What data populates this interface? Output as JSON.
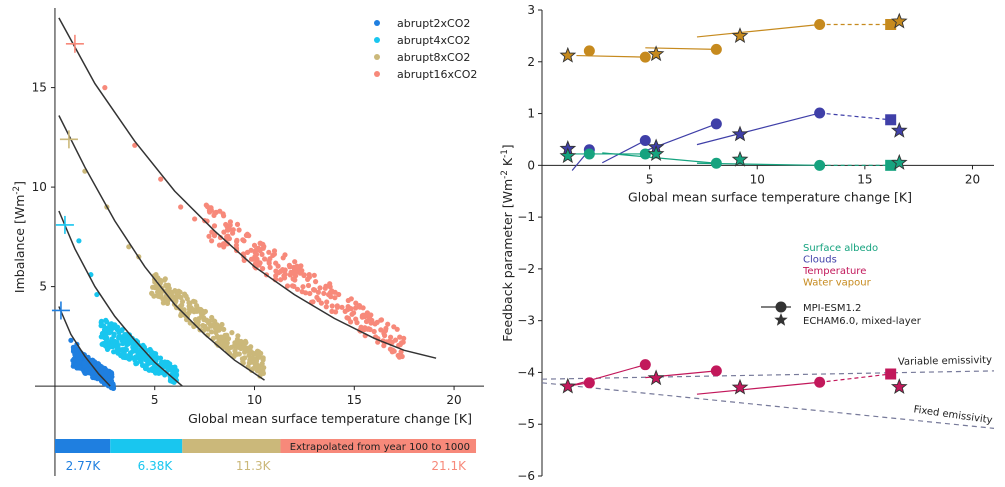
{
  "chart_data": [
    {
      "type": "scatter",
      "xlabel": "Global mean surface temperature change [K]",
      "ylabel": "Imbalance [Wm$^{-2}$]",
      "xlim": [
        -1,
        21.5
      ],
      "ylim": [
        -1,
        19
      ],
      "xticks": [
        "5",
        "10",
        "15",
        "20"
      ],
      "yticks": [
        "5",
        "10",
        "15"
      ],
      "legend_placement": "top-right",
      "series": [
        {
          "name": "abrupt2xCO2",
          "color": "#1f7fe0",
          "cloud": {
            "x0": 0.9,
            "x1": 2.95,
            "yhi0": 2.0,
            "ylo0": 1.0,
            "yhi1": 0.6,
            "ylo1": -0.2
          },
          "initial_point": [
            0.3,
            3.8
          ],
          "fit_line": {
            "x": [
              0.2,
              0.8,
              1.5,
              2.2,
              2.77
            ],
            "y": [
              4.0,
              2.6,
              1.5,
              0.6,
              0.0
            ]
          }
        },
        {
          "name": "abrupt4xCO2",
          "color": "#19c6ef",
          "cloud": {
            "x0": 2.3,
            "x1": 6.1,
            "yhi0": 3.6,
            "ylo0": 2.0,
            "yhi1": 0.9,
            "ylo1": 0.1
          },
          "initial_point": [
            0.5,
            8.1
          ],
          "fit_line": {
            "x": [
              0.2,
              1.0,
              2.0,
              3.0,
              4.0,
              5.0,
              6.38
            ],
            "y": [
              8.8,
              6.9,
              5.0,
              3.5,
              2.3,
              1.2,
              0.0
            ]
          }
        },
        {
          "name": "abrupt8xCO2",
          "color": "#cbb87a",
          "cloud": {
            "x0": 4.8,
            "x1": 10.5,
            "yhi0": 6.0,
            "ylo0": 4.6,
            "yhi1": 1.5,
            "ylo1": 0.3
          },
          "initial_point": [
            0.7,
            12.4
          ],
          "fit_line": {
            "x": [
              0.2,
              1.5,
              3.0,
              4.5,
              6.0,
              7.5,
              9.0,
              10.5
            ],
            "y": [
              13.6,
              11.0,
              8.3,
              6.0,
              4.1,
              2.6,
              1.3,
              0.3
            ]
          }
        },
        {
          "name": "abrupt16xCO2",
          "color": "#f7897a",
          "cloud": {
            "x0": 7.5,
            "x1": 17.5,
            "yhi0": 9.3,
            "ylo0": 7.5,
            "yhi1": 2.7,
            "ylo1": 1.3
          },
          "initial_point": [
            1.0,
            17.2
          ],
          "fit_line": {
            "x": [
              0.2,
              2.0,
              4.0,
              6.0,
              8.0,
              10.0,
              12.0,
              14.0,
              16.0,
              17.5,
              19.1
            ],
            "y": [
              18.5,
              15.2,
              12.3,
              9.8,
              7.8,
              6.0,
              4.6,
              3.4,
              2.4,
              1.8,
              1.4
            ]
          }
        }
      ],
      "scattered_points": [
        {
          "series": 0,
          "x": 0.8,
          "y": 2.3
        },
        {
          "series": 0,
          "x": 1.1,
          "y": 2.1
        },
        {
          "series": 1,
          "x": 1.2,
          "y": 7.3
        },
        {
          "series": 1,
          "x": 1.8,
          "y": 5.6
        },
        {
          "series": 1,
          "x": 2.1,
          "y": 4.6
        },
        {
          "series": 2,
          "x": 1.5,
          "y": 10.8
        },
        {
          "series": 2,
          "x": 2.6,
          "y": 9.0
        },
        {
          "series": 2,
          "x": 3.7,
          "y": 7.0
        },
        {
          "series": 2,
          "x": 4.2,
          "y": 6.5
        },
        {
          "series": 3,
          "x": 2.5,
          "y": 15.0
        },
        {
          "series": 3,
          "x": 4.0,
          "y": 12.1
        },
        {
          "series": 3,
          "x": 5.3,
          "y": 10.4
        },
        {
          "series": 3,
          "x": 6.3,
          "y": 9.0
        },
        {
          "series": 3,
          "x": 7.0,
          "y": 8.4
        }
      ],
      "bar": {
        "label": "Extrapolated from year 100 to 1000",
        "segments": [
          {
            "end": 2.77,
            "value_label": "2.77K"
          },
          {
            "end": 6.38,
            "value_label": "6.38K"
          },
          {
            "end": 11.3,
            "value_label": "11.3K"
          },
          {
            "end": 21.1,
            "value_label": "21.1K"
          }
        ]
      }
    },
    {
      "type": "scatter",
      "xlabel": "Global mean surface temperature change [K]",
      "ylabel": "Feedback parameter [Wm$^{-2}$ K$^{-1}$]",
      "xlim": [
        0,
        21
      ],
      "ylim": [
        -6,
        3
      ],
      "xticks": [
        "5",
        "10",
        "15",
        "20"
      ],
      "yticks": [
        "−6",
        "−5",
        "−4",
        "−3",
        "−2",
        "−1",
        "0",
        "1",
        "2",
        "3"
      ],
      "legend": {
        "feedbacks": [
          {
            "name": "Surface albedo",
            "color": "#16a37f"
          },
          {
            "name": "Clouds",
            "color": "#3f3fa8"
          },
          {
            "name": "Temperature",
            "color": "#c2185b"
          },
          {
            "name": "Water vapour",
            "color": "#c68a1e"
          }
        ],
        "models": [
          {
            "name": "MPI-ESM1.2",
            "marker": "circle"
          },
          {
            "name": "ECHAM6.0, mixed-layer",
            "marker": "star"
          }
        ]
      },
      "series": [
        {
          "name": "Water vapour",
          "color": "#c68a1e",
          "circles": [
            [
              2.2,
              2.21
            ],
            [
              4.8,
              2.09
            ],
            [
              8.1,
              2.24
            ],
            [
              12.9,
              2.72
            ]
          ],
          "square": [
            16.2,
            2.72
          ],
          "stars": [
            [
              1.2,
              2.12
            ],
            [
              5.3,
              2.15
            ],
            [
              9.2,
              2.5
            ],
            [
              16.6,
              2.78
            ]
          ],
          "segments": [
            [
              [
                1.6,
                2.12
              ],
              [
                4.8,
                2.09
              ]
            ],
            [
              [
                4.8,
                2.27
              ],
              [
                8.1,
                2.24
              ]
            ],
            [
              [
                7.2,
                2.48
              ],
              [
                12.9,
                2.72
              ]
            ]
          ],
          "dashed": [
            [
              12.9,
              2.72
            ],
            [
              16.2,
              2.72
            ]
          ]
        },
        {
          "name": "Clouds",
          "color": "#3f3fa8",
          "circles": [
            [
              2.2,
              0.3
            ],
            [
              4.8,
              0.48
            ],
            [
              8.1,
              0.8
            ],
            [
              12.9,
              1.01
            ]
          ],
          "square": [
            16.2,
            0.88
          ],
          "stars": [
            [
              1.2,
              0.32
            ],
            [
              5.3,
              0.35
            ],
            [
              9.2,
              0.6
            ],
            [
              16.6,
              0.67
            ]
          ],
          "segments": [
            [
              [
                1.4,
                -0.1
              ],
              [
                2.2,
                0.3
              ]
            ],
            [
              [
                2.8,
                0.05
              ],
              [
                4.8,
                0.48
              ]
            ],
            [
              [
                4.8,
                0.28
              ],
              [
                8.1,
                0.8
              ]
            ],
            [
              [
                7.2,
                0.4
              ],
              [
                12.9,
                1.01
              ]
            ]
          ],
          "dashed": [
            [
              12.9,
              1.01
            ],
            [
              16.2,
              0.88
            ]
          ]
        },
        {
          "name": "Surface albedo",
          "color": "#16a37f",
          "circles": [
            [
              2.2,
              0.22
            ],
            [
              4.8,
              0.22
            ],
            [
              8.1,
              0.04
            ],
            [
              12.9,
              0.0
            ]
          ],
          "square": [
            16.2,
            0.0
          ],
          "stars": [
            [
              1.2,
              0.18
            ],
            [
              5.3,
              0.22
            ],
            [
              9.2,
              0.11
            ],
            [
              16.6,
              0.05
            ]
          ],
          "segments": [
            [
              [
                1.4,
                0.22
              ],
              [
                4.8,
                0.22
              ]
            ],
            [
              [
                2.8,
                0.24
              ],
              [
                8.1,
                0.04
              ]
            ],
            [
              [
                7.2,
                0.04
              ],
              [
                12.9,
                0.0
              ]
            ]
          ],
          "dashed": [
            [
              12.9,
              0.0
            ],
            [
              16.2,
              0.0
            ]
          ]
        },
        {
          "name": "Temperature",
          "color": "#c2185b",
          "circles": [
            [
              2.2,
              -4.2
            ],
            [
              4.8,
              -3.85
            ],
            [
              8.1,
              -3.97
            ],
            [
              12.9,
              -4.19
            ]
          ],
          "square": [
            16.2,
            -4.03
          ],
          "stars": [
            [
              1.2,
              -4.27
            ],
            [
              5.3,
              -4.11
            ],
            [
              9.2,
              -4.29
            ],
            [
              16.6,
              -4.28
            ]
          ],
          "segments": [
            [
              [
                1.4,
                -4.25
              ],
              [
                2.2,
                -4.2
              ]
            ],
            [
              [
                1.4,
                -4.25
              ],
              [
                4.8,
                -3.85
              ]
            ],
            [
              [
                4.8,
                -4.1
              ],
              [
                8.1,
                -3.97
              ]
            ],
            [
              [
                7.2,
                -4.42
              ],
              [
                12.9,
                -4.19
              ]
            ]
          ],
          "dashed": [
            [
              12.9,
              -4.19
            ],
            [
              16.2,
              -4.03
            ]
          ]
        }
      ],
      "reference_lines": [
        {
          "name": "Variable emissivity",
          "x": [
            0,
            21
          ],
          "y": [
            -4.13,
            -3.97
          ]
        },
        {
          "name": "Fixed emissivity",
          "x": [
            0,
            21
          ],
          "y": [
            -4.2,
            -5.08
          ]
        }
      ]
    }
  ]
}
